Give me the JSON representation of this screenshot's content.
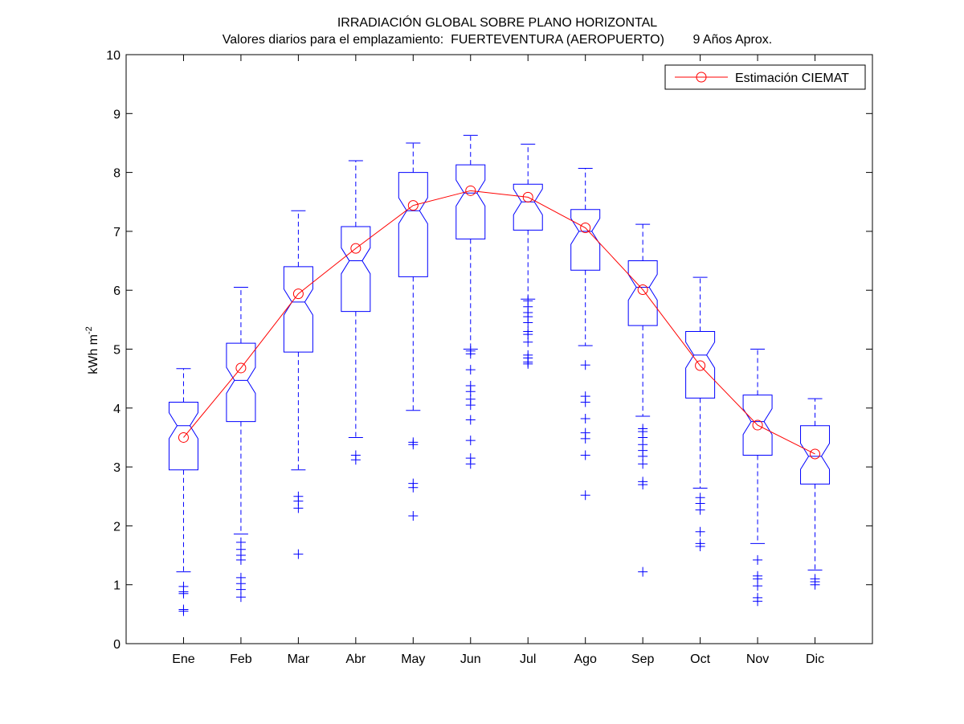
{
  "chart_data": {
    "type": "boxplot",
    "title": "IRRADIACIÓN GLOBAL SOBRE PLANO HORIZONTAL",
    "subtitle": "Valores diarios para el emplazamiento:  FUERTEVENTURA (AEROPUERTO)        9 Años Aprox.",
    "ylabel": "kWh m",
    "ylabel_superscript": "-2",
    "ylim": [
      0,
      10
    ],
    "yticks": [
      0,
      1,
      2,
      3,
      4,
      5,
      6,
      7,
      8,
      9,
      10
    ],
    "categories": [
      "Ene",
      "Feb",
      "Mar",
      "Abr",
      "May",
      "Jun",
      "Jul",
      "Ago",
      "Sep",
      "Oct",
      "Nov",
      "Dic"
    ],
    "boxes": [
      {
        "q1": 2.95,
        "median": 3.7,
        "q3": 4.1,
        "lower_whisker": 1.22,
        "upper_whisker": 4.67,
        "outliers": [
          0.97,
          0.88,
          0.85,
          0.58,
          0.55
        ]
      },
      {
        "q1": 3.77,
        "median": 4.47,
        "q3": 5.1,
        "lower_whisker": 1.86,
        "upper_whisker": 6.05,
        "outliers": [
          1.72,
          1.6,
          1.5,
          1.42,
          1.12,
          1.02,
          0.92,
          0.79
        ]
      },
      {
        "q1": 4.95,
        "median": 5.8,
        "q3": 6.4,
        "lower_whisker": 2.95,
        "upper_whisker": 7.35,
        "outliers": [
          2.5,
          2.42,
          2.3,
          1.52
        ]
      },
      {
        "q1": 5.64,
        "median": 6.5,
        "q3": 7.08,
        "lower_whisker": 3.5,
        "upper_whisker": 8.2,
        "outliers": [
          3.2,
          3.12
        ]
      },
      {
        "q1": 6.23,
        "median": 7.35,
        "q3": 8.0,
        "lower_whisker": 3.96,
        "upper_whisker": 8.5,
        "outliers": [
          3.42,
          3.38,
          2.72,
          2.65,
          2.17
        ]
      },
      {
        "q1": 6.87,
        "median": 7.65,
        "q3": 8.13,
        "lower_whisker": 5.0,
        "upper_whisker": 8.63,
        "outliers": [
          4.97,
          4.92,
          4.65,
          4.38,
          4.28,
          4.15,
          4.05,
          3.8,
          3.45,
          3.15,
          3.05
        ]
      },
      {
        "q1": 7.02,
        "median": 7.5,
        "q3": 7.8,
        "lower_whisker": 5.85,
        "upper_whisker": 8.48,
        "outliers": [
          5.82,
          5.72,
          5.62,
          5.55,
          5.45,
          5.3,
          5.25,
          5.12,
          4.9,
          4.85,
          4.78,
          4.75
        ]
      },
      {
        "q1": 6.34,
        "median": 7.0,
        "q3": 7.37,
        "lower_whisker": 5.06,
        "upper_whisker": 8.07,
        "outliers": [
          4.73,
          4.2,
          4.1,
          3.82,
          3.58,
          3.48,
          3.2,
          2.52
        ]
      },
      {
        "q1": 5.4,
        "median": 6.05,
        "q3": 6.5,
        "lower_whisker": 3.86,
        "upper_whisker": 7.12,
        "outliers": [
          3.65,
          3.6,
          3.5,
          3.38,
          3.28,
          3.18,
          3.05,
          2.75,
          2.7,
          1.22
        ]
      },
      {
        "q1": 4.17,
        "median": 4.9,
        "q3": 5.3,
        "lower_whisker": 2.64,
        "upper_whisker": 6.22,
        "outliers": [
          2.48,
          2.38,
          2.27,
          1.9,
          1.7,
          1.65
        ]
      },
      {
        "q1": 3.2,
        "median": 3.77,
        "q3": 4.22,
        "lower_whisker": 1.7,
        "upper_whisker": 5.0,
        "outliers": [
          1.42,
          1.15,
          1.1,
          0.98,
          0.78,
          0.72
        ]
      },
      {
        "q1": 2.71,
        "median": 3.18,
        "q3": 3.7,
        "lower_whisker": 1.25,
        "upper_whisker": 4.16,
        "outliers": [
          1.1,
          1.05,
          1.0
        ]
      }
    ],
    "series": [
      {
        "name": "Estimación CIEMAT",
        "values": [
          3.5,
          4.68,
          5.94,
          6.71,
          7.44,
          7.69,
          7.58,
          7.06,
          6.01,
          4.72,
          3.71,
          3.22
        ]
      }
    ],
    "legend_position": "top-right",
    "grid": false,
    "colors": {
      "box": "#0000ff",
      "line": "#ff0000",
      "axes": "#000000"
    }
  }
}
